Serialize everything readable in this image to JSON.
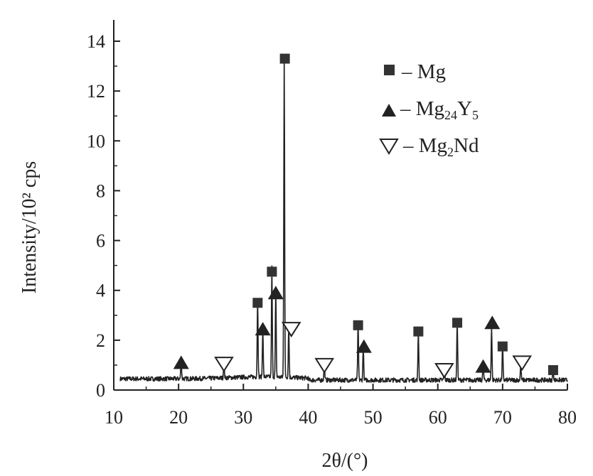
{
  "chart_data": {
    "type": "line",
    "title": "",
    "xlabel": "2θ/(°)",
    "ylabel": "Intensity/10² cps",
    "xlim": [
      10,
      80
    ],
    "ylim": [
      0,
      14
    ],
    "x_ticks": [
      10,
      20,
      30,
      40,
      50,
      60,
      70,
      80
    ],
    "y_ticks": [
      0,
      2,
      4,
      6,
      8,
      10,
      12,
      14
    ],
    "grid": false,
    "legend_position": "top-right",
    "legend": [
      {
        "marker": "filled-square",
        "label": "Mg"
      },
      {
        "marker": "filled-triangle",
        "label": "Mg24Y5",
        "label_parts": [
          "Mg",
          "24",
          "Y",
          "5"
        ]
      },
      {
        "marker": "open-inverted-triangle",
        "label": "Mg2Nd",
        "label_parts": [
          "Mg",
          "2",
          "Nd"
        ]
      }
    ],
    "baseline": 0.45,
    "peaks": [
      {
        "x": 20.4,
        "y": 0.8
      },
      {
        "x": 27.0,
        "y": 0.7
      },
      {
        "x": 32.2,
        "y": 3.2
      },
      {
        "x": 33.0,
        "y": 2.0
      },
      {
        "x": 34.4,
        "y": 4.4
      },
      {
        "x": 35.0,
        "y": 3.5
      },
      {
        "x": 36.3,
        "y": 13.0
      },
      {
        "x": 37.0,
        "y": 2.1
      },
      {
        "x": 42.5,
        "y": 0.7
      },
      {
        "x": 47.7,
        "y": 2.3
      },
      {
        "x": 48.5,
        "y": 1.3
      },
      {
        "x": 57.0,
        "y": 2.0
      },
      {
        "x": 61.0,
        "y": 0.6
      },
      {
        "x": 63.0,
        "y": 2.4
      },
      {
        "x": 67.0,
        "y": 0.7
      },
      {
        "x": 68.3,
        "y": 2.2
      },
      {
        "x": 70.0,
        "y": 1.4
      },
      {
        "x": 72.8,
        "y": 0.6
      },
      {
        "x": 77.8,
        "y": 0.5
      }
    ],
    "markers": [
      {
        "phase": "Mg",
        "x": 36.4,
        "y": 13.3
      },
      {
        "phase": "Mg",
        "x": 34.4,
        "y": 4.75
      },
      {
        "phase": "Mg",
        "x": 32.2,
        "y": 3.5
      },
      {
        "phase": "Mg",
        "x": 47.7,
        "y": 2.6
      },
      {
        "phase": "Mg",
        "x": 57.0,
        "y": 2.35
      },
      {
        "phase": "Mg",
        "x": 63.0,
        "y": 2.7
      },
      {
        "phase": "Mg",
        "x": 70.0,
        "y": 1.75
      },
      {
        "phase": "Mg",
        "x": 77.8,
        "y": 0.8
      },
      {
        "phase": "Mg24Y5",
        "x": 20.4,
        "y": 1.1
      },
      {
        "phase": "Mg24Y5",
        "x": 33.0,
        "y": 2.45
      },
      {
        "phase": "Mg24Y5",
        "x": 35.0,
        "y": 3.9
      },
      {
        "phase": "Mg24Y5",
        "x": 48.6,
        "y": 1.75
      },
      {
        "phase": "Mg24Y5",
        "x": 67.0,
        "y": 0.95
      },
      {
        "phase": "Mg24Y5",
        "x": 68.4,
        "y": 2.7
      },
      {
        "phase": "Mg2Nd",
        "x": 27.0,
        "y": 1.05
      },
      {
        "phase": "Mg2Nd",
        "x": 37.4,
        "y": 2.45
      },
      {
        "phase": "Mg2Nd",
        "x": 42.5,
        "y": 1.0
      },
      {
        "phase": "Mg2Nd",
        "x": 61.0,
        "y": 0.8
      },
      {
        "phase": "Mg2Nd",
        "x": 73.0,
        "y": 1.1
      }
    ]
  }
}
